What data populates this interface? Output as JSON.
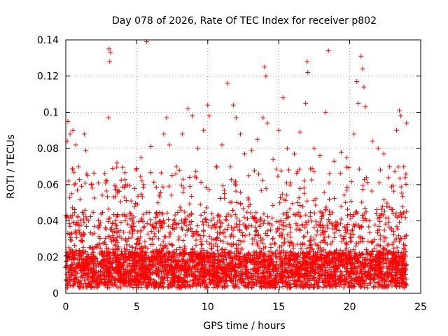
{
  "chart_data": {
    "type": "scatter",
    "title": "Day 078 of 2026, Rate Of TEC Index for receiver p802",
    "xlabel": "GPS time / hours",
    "ylabel": "ROTI / TECUs",
    "xlim": [
      0,
      25
    ],
    "ylim": [
      0,
      0.14
    ],
    "x_ticks": [
      "0",
      "5",
      "10",
      "15",
      "20",
      "25"
    ],
    "y_ticks": [
      "0",
      "0.02",
      "0.04",
      "0.06",
      "0.08",
      "0.1",
      "0.12",
      "0.14"
    ],
    "grid": true,
    "legend": "none",
    "marker": "plus",
    "color": "#ff0000",
    "series": [
      {
        "x_range": [
          0,
          24
        ],
        "points": [
          [
            0.1,
            0.084
          ],
          [
            0.15,
            0.095
          ],
          [
            0.3,
            0.088
          ],
          [
            0.5,
            0.09
          ],
          [
            0.7,
            0.082
          ],
          [
            0.2,
            0.062
          ],
          [
            0.4,
            0.055
          ],
          [
            0.6,
            0.06
          ],
          [
            0.9,
            0.07
          ],
          [
            1.3,
            0.088
          ],
          [
            1.4,
            0.079
          ],
          [
            1.8,
            0.06
          ],
          [
            2.3,
            0.061
          ],
          [
            2.9,
            0.062
          ],
          [
            3.0,
            0.097
          ],
          [
            3.05,
            0.135
          ],
          [
            3.1,
            0.128
          ],
          [
            3.15,
            0.133
          ],
          [
            3.3,
            0.069
          ],
          [
            3.6,
            0.072
          ],
          [
            4.2,
            0.06
          ],
          [
            4.6,
            0.051
          ],
          [
            5.0,
            0.069
          ],
          [
            5.3,
            0.075
          ],
          [
            5.5,
            0.06
          ],
          [
            5.7,
            0.139
          ],
          [
            6.0,
            0.081
          ],
          [
            6.5,
            0.05
          ],
          [
            6.9,
            0.088
          ],
          [
            7.1,
            0.097
          ],
          [
            7.3,
            0.082
          ],
          [
            7.8,
            0.07
          ],
          [
            8.2,
            0.088
          ],
          [
            8.6,
            0.102
          ],
          [
            8.9,
            0.098
          ],
          [
            9.3,
            0.08
          ],
          [
            9.7,
            0.09
          ],
          [
            10.0,
            0.104
          ],
          [
            10.1,
            0.098
          ],
          [
            10.6,
            0.07
          ],
          [
            11.0,
            0.082
          ],
          [
            11.4,
            0.116
          ],
          [
            11.8,
            0.104
          ],
          [
            12.0,
            0.097
          ],
          [
            12.3,
            0.088
          ],
          [
            12.6,
            0.077
          ],
          [
            13.1,
            0.079
          ],
          [
            13.5,
            0.085
          ],
          [
            13.9,
            0.097
          ],
          [
            14.0,
            0.125
          ],
          [
            14.1,
            0.12
          ],
          [
            14.2,
            0.094
          ],
          [
            14.6,
            0.074
          ],
          [
            15.0,
            0.09
          ],
          [
            15.3,
            0.108
          ],
          [
            15.6,
            0.08
          ],
          [
            16.1,
            0.077
          ],
          [
            16.5,
            0.089
          ],
          [
            16.9,
            0.105
          ],
          [
            17.0,
            0.128
          ],
          [
            17.05,
            0.122
          ],
          [
            17.5,
            0.08
          ],
          [
            17.9,
            0.076
          ],
          [
            18.3,
            0.1
          ],
          [
            18.5,
            0.134
          ],
          [
            18.9,
            0.073
          ],
          [
            19.4,
            0.078
          ],
          [
            19.8,
            0.075
          ],
          [
            20.3,
            0.088
          ],
          [
            20.5,
            0.117
          ],
          [
            20.6,
            0.105
          ],
          [
            20.8,
            0.131
          ],
          [
            20.9,
            0.124
          ],
          [
            21.0,
            0.114
          ],
          [
            21.1,
            0.103
          ],
          [
            21.6,
            0.084
          ],
          [
            22.0,
            0.08
          ],
          [
            22.4,
            0.077
          ],
          [
            22.8,
            0.07
          ],
          [
            23.3,
            0.09
          ],
          [
            23.5,
            0.101
          ],
          [
            23.6,
            0.098
          ],
          [
            23.8,
            0.07
          ],
          [
            24.0,
            0.094
          ]
        ]
      }
    ]
  }
}
